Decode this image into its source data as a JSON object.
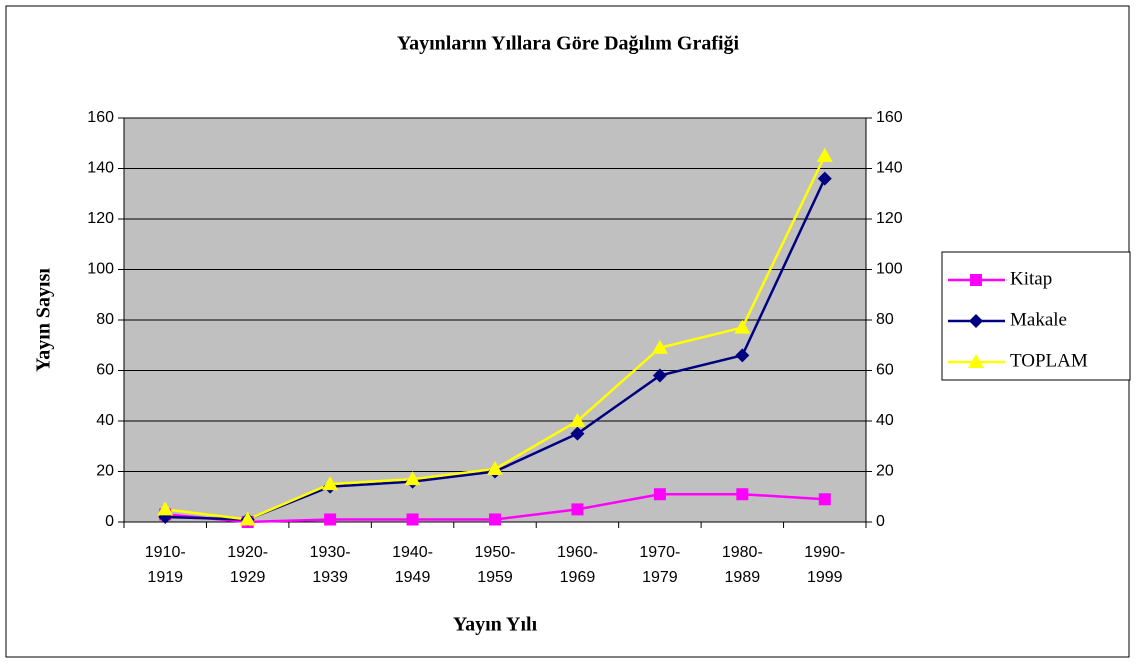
{
  "chart_data": {
    "type": "line",
    "title": "Yayınların Yıllara Göre Dağılım Grafiği",
    "x_label": "Yayın Yılı",
    "y_label": "Yayın Sayısı",
    "categories": [
      "1910-1919",
      "1920-1929",
      "1930-1939",
      "1940-1949",
      "1950-1959",
      "1960-1969",
      "1970-1979",
      "1980-1989",
      "1990-1999"
    ],
    "series": [
      {
        "name": "Kitap",
        "color": "#ff00ff",
        "marker": "square",
        "values": [
          3,
          0,
          1,
          1,
          1,
          5,
          11,
          11,
          9
        ]
      },
      {
        "name": "Makale",
        "color": "#000080",
        "marker": "diamond",
        "values": [
          2,
          1,
          14,
          16,
          20,
          35,
          58,
          66,
          136
        ]
      },
      {
        "name": "TOPLAM",
        "color": "#ffff00",
        "marker": "triangle",
        "values": [
          5,
          1,
          15,
          17,
          21,
          40,
          69,
          77,
          145
        ]
      }
    ],
    "ylim": [
      0,
      160
    ],
    "yticks": [
      0,
      20,
      40,
      60,
      80,
      100,
      120,
      140,
      160
    ],
    "y2lim": [
      0,
      160
    ],
    "y2ticks": [
      0,
      20,
      40,
      60,
      80,
      100,
      120,
      140,
      160
    ],
    "grid": true,
    "legend": "right"
  }
}
